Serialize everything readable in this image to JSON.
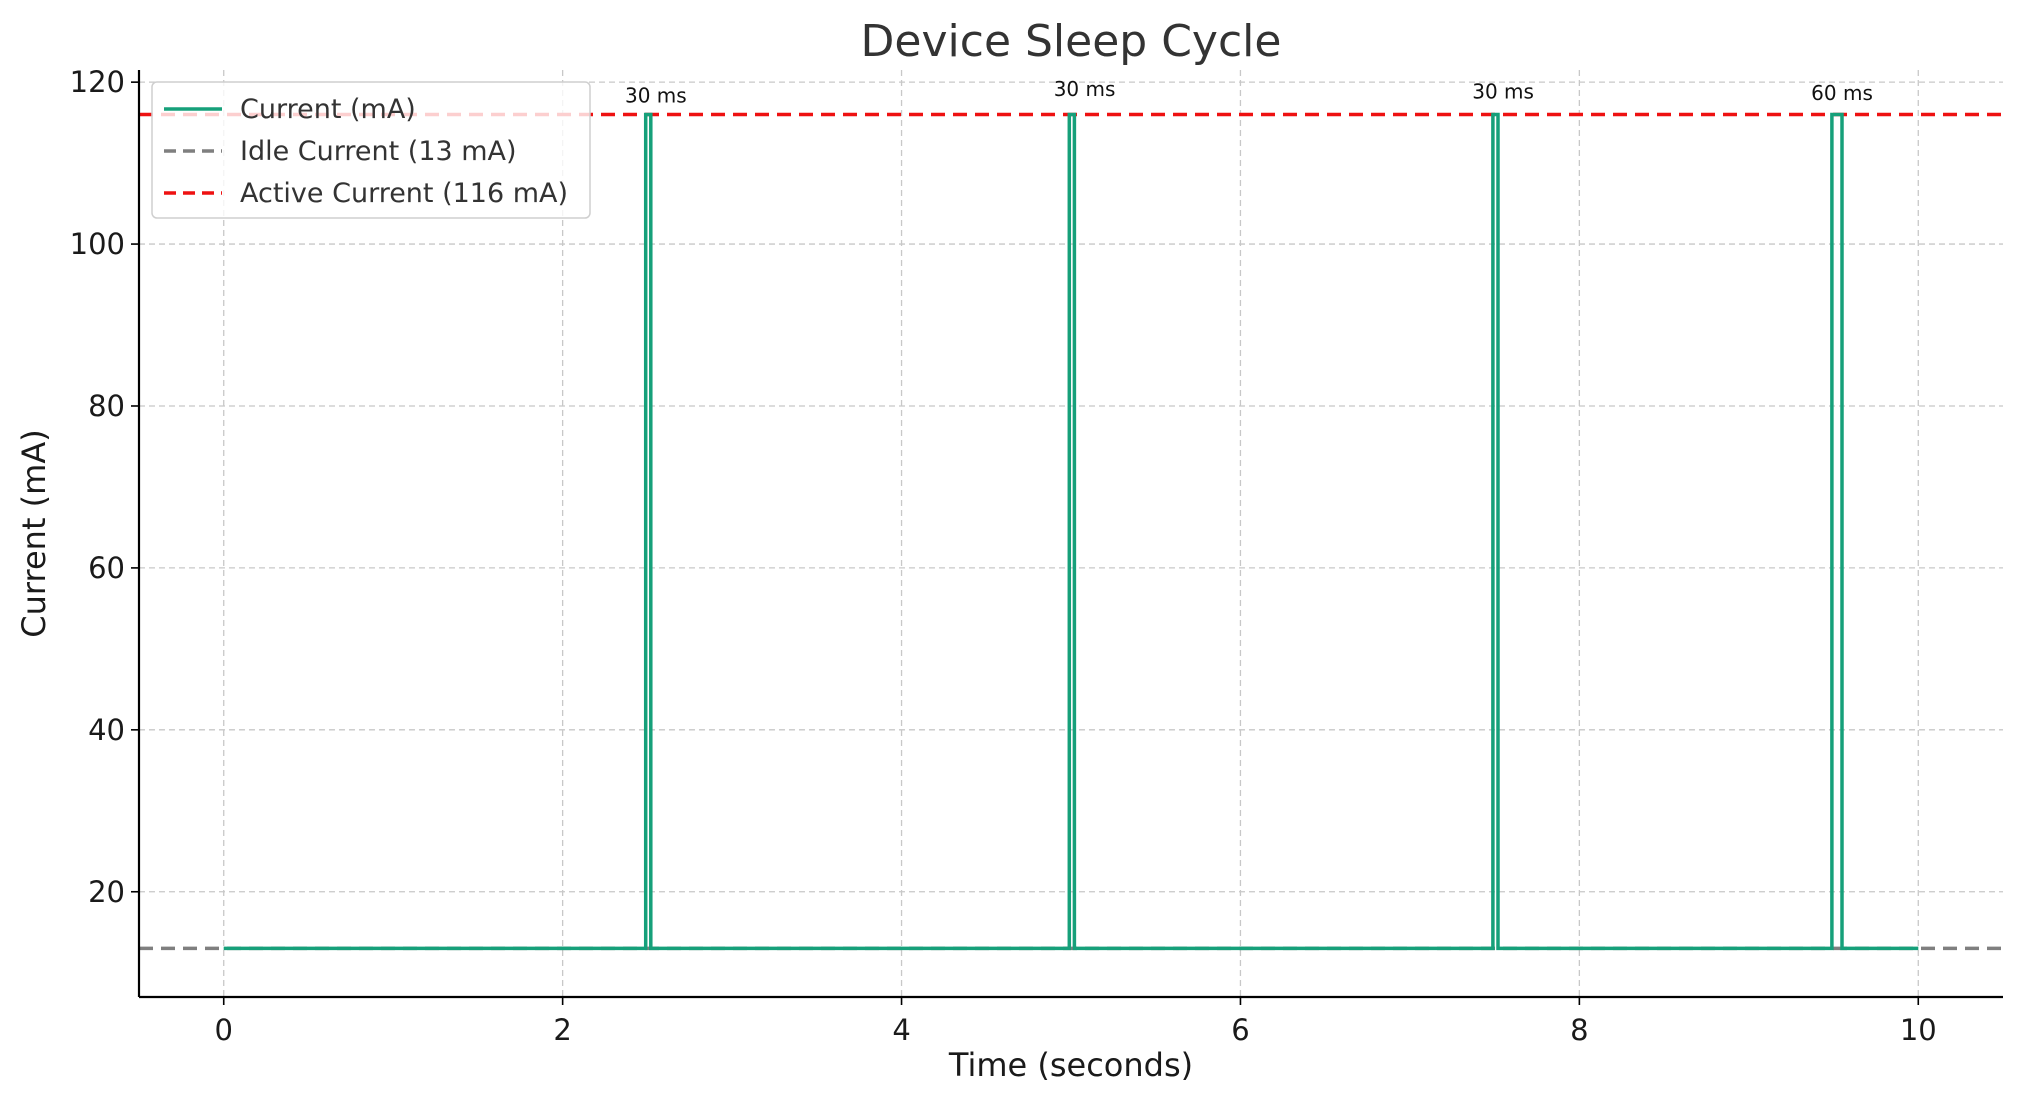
{
  "chart_data": {
    "type": "line",
    "title": "Device Sleep Cycle",
    "xlabel": "Time (seconds)",
    "ylabel": "Current (mA)",
    "xlim": [
      -0.5,
      10.5
    ],
    "ylim": [
      7,
      121.5
    ],
    "xticks": [
      0,
      2,
      4,
      6,
      8,
      10
    ],
    "yticks": [
      20,
      40,
      60,
      80,
      100,
      120
    ],
    "grid": true,
    "legend_position": "top-left",
    "series": [
      {
        "name": "Current (mA)",
        "color": "#16a07a",
        "style": "solid",
        "x": [
          0,
          2.49,
          2.49,
          2.52,
          2.52,
          4.99,
          4.99,
          5.02,
          5.02,
          7.49,
          7.49,
          7.52,
          7.52,
          9.49,
          9.49,
          9.55,
          9.55,
          10
        ],
        "y": [
          13,
          13,
          116,
          116,
          13,
          13,
          116,
          116,
          13,
          13,
          116,
          116,
          13,
          13,
          116,
          116,
          13,
          13
        ]
      },
      {
        "name": "Idle Current (13 mA)",
        "color": "#7f7f7f",
        "style": "dashed",
        "y_constant": 13
      },
      {
        "name": "Active Current (116 mA)",
        "color": "#ee1111",
        "style": "dashed",
        "y_constant": 116
      }
    ],
    "annotations": [
      {
        "text": "30 ms",
        "x": 2.55,
        "y": 117.5
      },
      {
        "text": "30 ms",
        "x": 5.08,
        "y": 118.3
      },
      {
        "text": "30 ms",
        "x": 7.55,
        "y": 118.0
      },
      {
        "text": "60 ms",
        "x": 9.55,
        "y": 117.8
      }
    ]
  }
}
